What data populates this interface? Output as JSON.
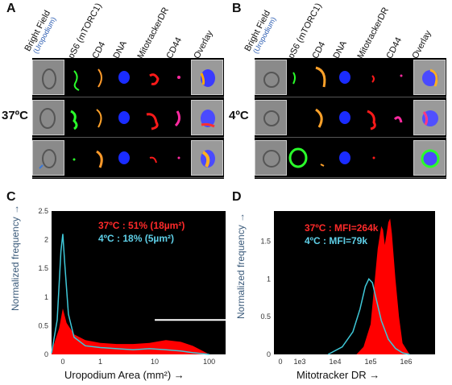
{
  "panels": {
    "A": "A",
    "B": "B",
    "C": "C",
    "D": "D"
  },
  "headers": {
    "bright_field": "Bright Field",
    "uropodium": "(Uropodium)",
    "ps6": "pS6 (mTORC1)",
    "cd4": "CD4",
    "dna": "DNA",
    "mitotracker": "MitotrackerDR",
    "cd44": "CD44",
    "overlay": "Overlay"
  },
  "temps": {
    "warm": "37ºC",
    "cold": "4ºC"
  },
  "chart_data": [
    {
      "type": "area",
      "panel": "C",
      "xlabel": "Uropodium Area (mm²) →",
      "ylabel": "Normalized frequency →",
      "x_scale": "log-like",
      "x_ticks": [
        "0",
        "1",
        "10",
        "100"
      ],
      "y_ticks": [
        "0",
        "0.5",
        "1",
        "1.5",
        "2",
        "2.5"
      ],
      "ylim": [
        0,
        2.5
      ],
      "annotations": [
        {
          "text": "37ºC : 51% (18µm²)",
          "color": "#ff2a2a"
        },
        {
          "text": "4ºC  : 18% (5µm²)",
          "color": "#5fd0e8"
        }
      ],
      "series": [
        {
          "name": "37ºC",
          "color": "#ff0000",
          "style": "filled",
          "x": [
            -0.3,
            -0.1,
            0,
            0.1,
            0.3,
            0.6,
            1,
            2,
            4,
            8,
            16,
            30,
            50,
            80,
            100
          ],
          "y": [
            0.05,
            0.45,
            0.8,
            0.55,
            0.35,
            0.25,
            0.2,
            0.18,
            0.18,
            0.2,
            0.25,
            0.22,
            0.15,
            0.05,
            0
          ]
        },
        {
          "name": "4ºC",
          "color": "#3fc8d8",
          "style": "line",
          "x": [
            -0.3,
            -0.15,
            -0.05,
            0,
            0.05,
            0.15,
            0.3,
            0.6,
            1,
            2,
            4,
            8,
            16,
            30,
            50,
            80,
            100
          ],
          "y": [
            0.02,
            0.6,
            1.8,
            2.1,
            1.6,
            0.7,
            0.3,
            0.15,
            0.12,
            0.1,
            0.08,
            0.1,
            0.08,
            0.06,
            0.03,
            0.01,
            0
          ]
        }
      ],
      "reference_line": {
        "x_from": 10,
        "x_to": 200,
        "y": 0.6,
        "color": "#ffffff"
      }
    },
    {
      "type": "area",
      "panel": "D",
      "xlabel": "Mitotracker DR →",
      "ylabel": "Normalized frequency →",
      "x_ticks": [
        "0",
        "1e3",
        "1e4",
        "1e5",
        "1e6"
      ],
      "y_ticks": [
        "0",
        "0.5",
        "1",
        "1.5"
      ],
      "ylim": [
        0,
        1.9
      ],
      "annotations": [
        {
          "text": "37ºC : MFI=264k",
          "color": "#ff2a2a"
        },
        {
          "text": "4ºC  : MFI=79k",
          "color": "#5fd0e8"
        }
      ],
      "series": [
        {
          "name": "37ºC",
          "color": "#ff0000",
          "style": "filled",
          "x": [
            4.6,
            4.8,
            5.0,
            5.1,
            5.2,
            5.3,
            5.35,
            5.4,
            5.45,
            5.5,
            5.55,
            5.6,
            5.7,
            5.8,
            5.9,
            6.1
          ],
          "y": [
            0,
            0.1,
            0.4,
            0.9,
            1.4,
            1.7,
            1.65,
            1.45,
            1.6,
            1.75,
            1.8,
            1.6,
            1.0,
            0.5,
            0.15,
            0
          ]
        },
        {
          "name": "4ºC",
          "color": "#3fc8d8",
          "style": "line",
          "x": [
            3.8,
            4.2,
            4.5,
            4.7,
            4.85,
            4.95,
            5.05,
            5.15,
            5.3,
            5.5,
            5.7,
            5.9,
            6.1
          ],
          "y": [
            0,
            0.1,
            0.3,
            0.6,
            0.9,
            1.0,
            0.95,
            0.75,
            0.45,
            0.2,
            0.08,
            0.02,
            0
          ]
        }
      ]
    }
  ]
}
